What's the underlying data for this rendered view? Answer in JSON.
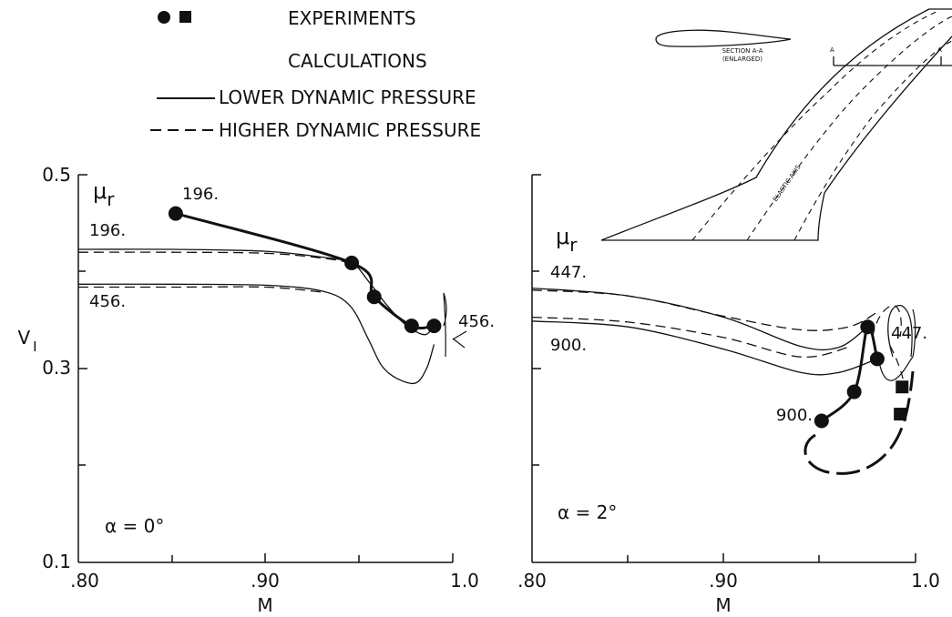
{
  "legend": {
    "experiments_label": "EXPERIMENTS",
    "calculations_label": "CALCULATIONS",
    "lower_label": "LOWER DYNAMIC PRESSURE",
    "higher_label": "HIGHER DYNAMIC PRESSURE"
  },
  "inset": {
    "section_label_1": "SECTION A-A",
    "section_label_2": "(ENLARGED)",
    "elastic_axis_label": "ELASTIC AXIS",
    "section_marker_left": "A",
    "section_marker_right": "A"
  },
  "chart_data": [
    {
      "type": "line",
      "xlabel": "M",
      "ylabel": "V",
      "ylabel_sub": "I",
      "xlim": [
        0.8,
        1.0
      ],
      "ylim": [
        0.1,
        0.5
      ],
      "x_ticks": [
        ".80",
        ".90",
        "1.0"
      ],
      "y_ticks": [
        "0.1",
        "0.3",
        "0.5"
      ],
      "mu_label": "μ",
      "mu_sub": "r",
      "annotation": "α = 0°",
      "mass_ratio_labels": [
        "196.",
        "456.",
        "196.",
        "456."
      ],
      "series": [
        {
          "name": "EXPERIMENTS",
          "mass_ratio": "196.",
          "style": "experiment-thick",
          "x": [
            0.852,
            0.946,
            0.958,
            0.978,
            0.99
          ],
          "y": [
            0.46,
            0.409,
            0.374,
            0.344,
            0.344
          ]
        },
        {
          "name": "LOWER DYNAMIC PRESSURE",
          "mass_ratio": "196.",
          "style": "solid",
          "x": [
            0.8,
            0.85,
            0.9,
            0.93,
            0.946,
            0.955,
            0.965,
            0.975,
            0.985,
            0.99
          ],
          "y": [
            0.423,
            0.423,
            0.421,
            0.415,
            0.409,
            0.39,
            0.365,
            0.345,
            0.335,
            0.345
          ]
        },
        {
          "name": "HIGHER DYNAMIC PRESSURE",
          "mass_ratio": "196.",
          "style": "dashed",
          "x": [
            0.8,
            0.85,
            0.9,
            0.93,
            0.946
          ],
          "y": [
            0.42,
            0.42,
            0.419,
            0.414,
            0.409
          ]
        },
        {
          "name": "LOWER DYNAMIC PRESSURE",
          "mass_ratio": "456.",
          "style": "solid",
          "x": [
            0.8,
            0.85,
            0.9,
            0.93,
            0.945,
            0.955,
            0.962,
            0.97,
            0.98,
            0.986,
            0.99
          ],
          "y": [
            0.387,
            0.387,
            0.386,
            0.38,
            0.365,
            0.33,
            0.303,
            0.29,
            0.285,
            0.3,
            0.325
          ]
        },
        {
          "name": "HIGHER DYNAMIC PRESSURE",
          "mass_ratio": "456.",
          "style": "dashed",
          "x": [
            0.8,
            0.85,
            0.9,
            0.93
          ],
          "y": [
            0.384,
            0.384,
            0.384,
            0.379
          ]
        }
      ]
    },
    {
      "type": "line",
      "xlabel": "M",
      "xlim": [
        0.8,
        1.0
      ],
      "ylim": [
        0.1,
        0.5
      ],
      "x_ticks": [
        ".80",
        ".90",
        "1.0"
      ],
      "mu_label": "μ",
      "mu_sub": "r",
      "annotation": "α = 2°",
      "mass_ratio_labels": [
        "447.",
        "900.",
        "447.",
        "900."
      ],
      "series": [
        {
          "name": "EXPERIMENTS",
          "mass_ratio": "447.",
          "style": "experiment-thick",
          "x": [
            0.951,
            0.968,
            0.975,
            0.98
          ],
          "y": [
            0.246,
            0.276,
            0.343,
            0.31
          ]
        },
        {
          "name": "EXPERIMENTS",
          "mass_ratio": "900.",
          "style": "experiment-square",
          "x": [
            0.993,
            0.992
          ],
          "y": [
            0.281,
            0.253
          ]
        },
        {
          "name": "LOWER DYNAMIC PRESSURE",
          "mass_ratio": "447.",
          "style": "solid",
          "x": [
            0.8,
            0.85,
            0.9,
            0.94,
            0.96,
            0.975
          ],
          "y": [
            0.383,
            0.375,
            0.353,
            0.323,
            0.322,
            0.343
          ]
        },
        {
          "name": "HIGHER DYNAMIC PRESSURE",
          "mass_ratio": "447.",
          "style": "dashed",
          "x": [
            0.8,
            0.85,
            0.9,
            0.94,
            0.965,
            0.98
          ],
          "y": [
            0.381,
            0.375,
            0.354,
            0.34,
            0.343,
            0.358
          ]
        },
        {
          "name": "LOWER DYNAMIC PRESSURE",
          "mass_ratio": "900.",
          "style": "solid",
          "x": [
            0.8,
            0.85,
            0.9,
            0.94,
            0.96,
            0.98
          ],
          "y": [
            0.349,
            0.343,
            0.32,
            0.296,
            0.296,
            0.31
          ]
        },
        {
          "name": "HIGHER DYNAMIC PRESSURE",
          "mass_ratio": "900.",
          "style": "dashed",
          "x": [
            0.8,
            0.85,
            0.9,
            0.94,
            0.965
          ],
          "y": [
            0.353,
            0.348,
            0.332,
            0.312,
            0.322
          ]
        }
      ]
    }
  ]
}
